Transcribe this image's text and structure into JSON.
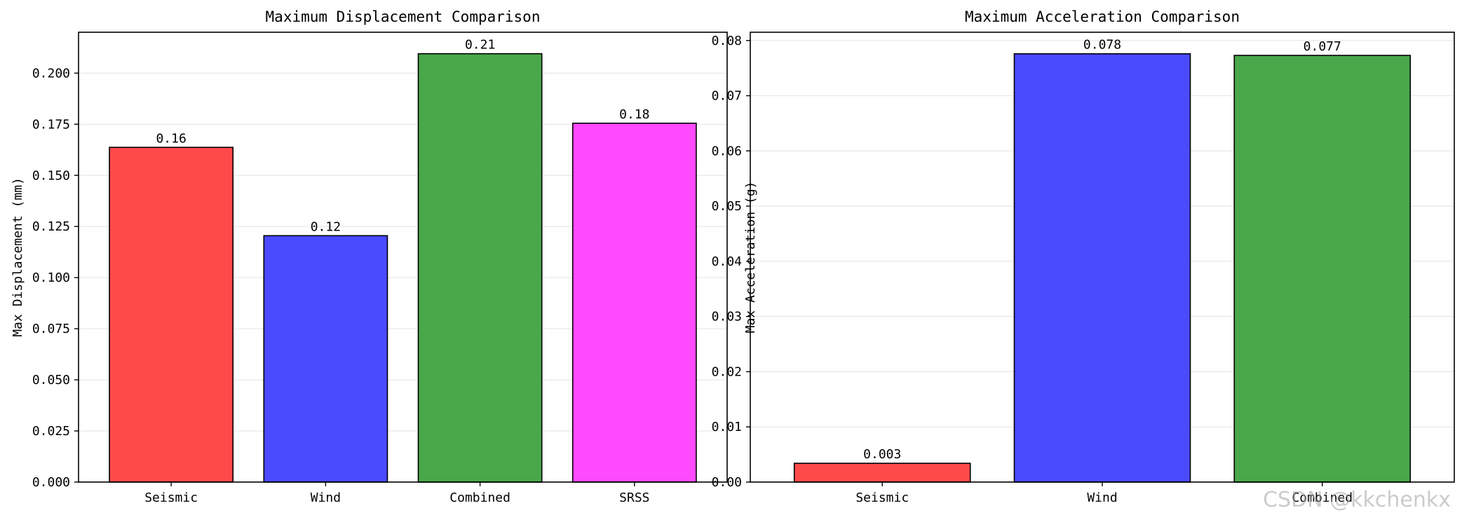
{
  "watermark": "CSDN @kkchenkx",
  "chart_data": [
    {
      "type": "bar",
      "title": "Maximum Displacement Comparison",
      "xlabel": "",
      "ylabel": "Max Displacement (mm)",
      "categories": [
        "Seismic",
        "Wind",
        "Combined",
        "SRSS"
      ],
      "values": [
        0.1637,
        0.1205,
        0.2095,
        0.1755
      ],
      "value_labels": [
        "0.16",
        "0.12",
        "0.21",
        "0.18"
      ],
      "colors": [
        "#ff4a4a",
        "#4a4aff",
        "#4aa74a",
        "#ff4aff"
      ],
      "ylim": [
        0,
        0.22
      ],
      "yticks": [
        0,
        0.025,
        0.05,
        0.075,
        0.1,
        0.125,
        0.15,
        0.175,
        0.2
      ],
      "ytick_labels": [
        "0.000",
        "0.025",
        "0.050",
        "0.075",
        "0.100",
        "0.125",
        "0.150",
        "0.175",
        "0.200"
      ],
      "grid": true
    },
    {
      "type": "bar",
      "title": "Maximum Acceleration Comparison",
      "xlabel": "",
      "ylabel": "Max Acceleration (g)",
      "categories": [
        "Seismic",
        "Wind",
        "Combined"
      ],
      "values": [
        0.0034,
        0.0776,
        0.0773
      ],
      "value_labels": [
        "0.003",
        "0.078",
        "0.077"
      ],
      "colors": [
        "#ff4a4a",
        "#4a4aff",
        "#4aa74a"
      ],
      "ylim": [
        0,
        0.0815
      ],
      "yticks": [
        0,
        0.01,
        0.02,
        0.03,
        0.04,
        0.05,
        0.06,
        0.07,
        0.08
      ],
      "ytick_labels": [
        "0.00",
        "0.01",
        "0.02",
        "0.03",
        "0.04",
        "0.05",
        "0.06",
        "0.07",
        "0.08"
      ],
      "grid": true
    }
  ]
}
